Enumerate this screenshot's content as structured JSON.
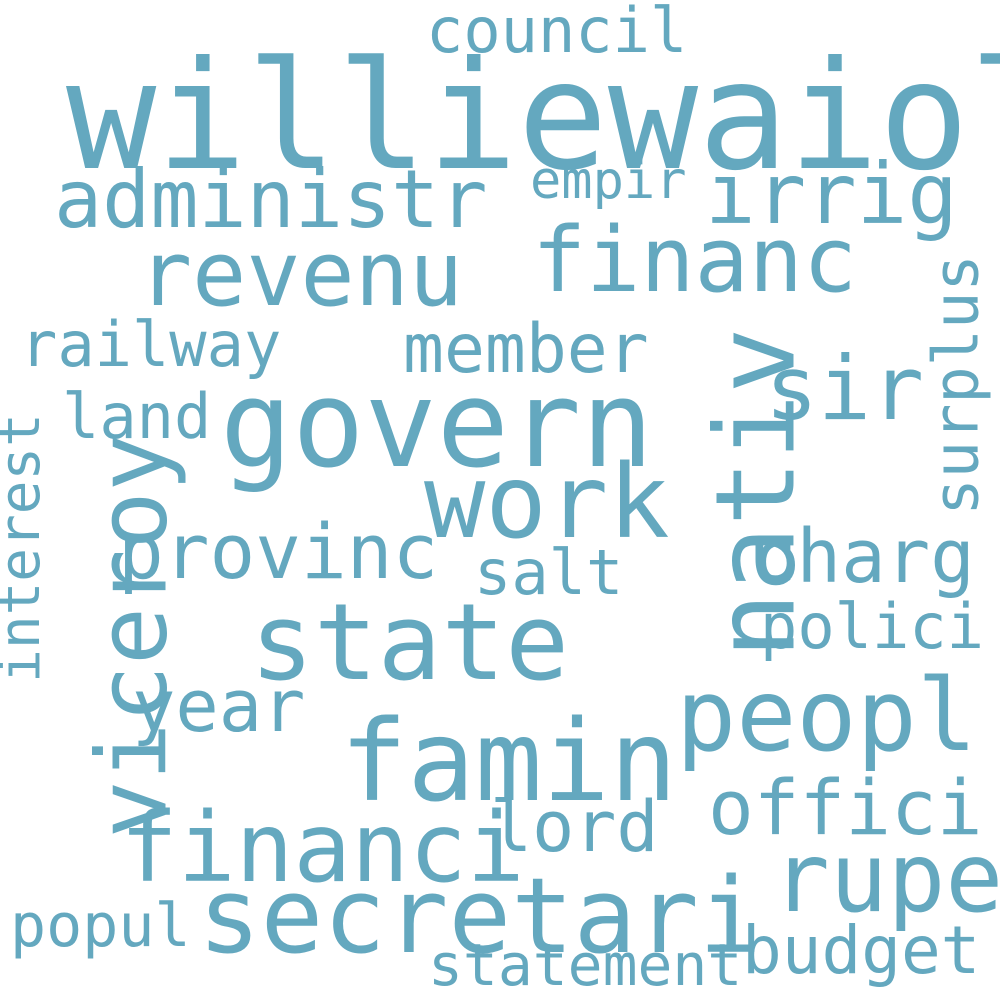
{
  "color": "#64a8bf",
  "background": "#ffffff",
  "words": {
    "williewaiola": "williewaiola",
    "council": "council",
    "administr": "administr",
    "empir": "empir",
    "irrig": "irrig",
    "revenu": "revenu",
    "financ": "financ",
    "railway": "railway",
    "member": "member",
    "sir": "sir",
    "land": "land",
    "govern": "govern",
    "work": "work",
    "provinc": "provinc",
    "salt": "salt",
    "charg": "charg",
    "state": "state",
    "polici": "polici",
    "peopl": "peopl",
    "year": "year",
    "famin": "famin",
    "offici": "offici",
    "lord": "lord",
    "financi": "financi",
    "rupe": "rupe",
    "secretari": "secretari",
    "popul": "popul",
    "budget": "budget",
    "statement": "statement",
    "nativ": "nativ",
    "viceroy": "viceroy",
    "surplus": "surplus",
    "interest": "interest"
  }
}
